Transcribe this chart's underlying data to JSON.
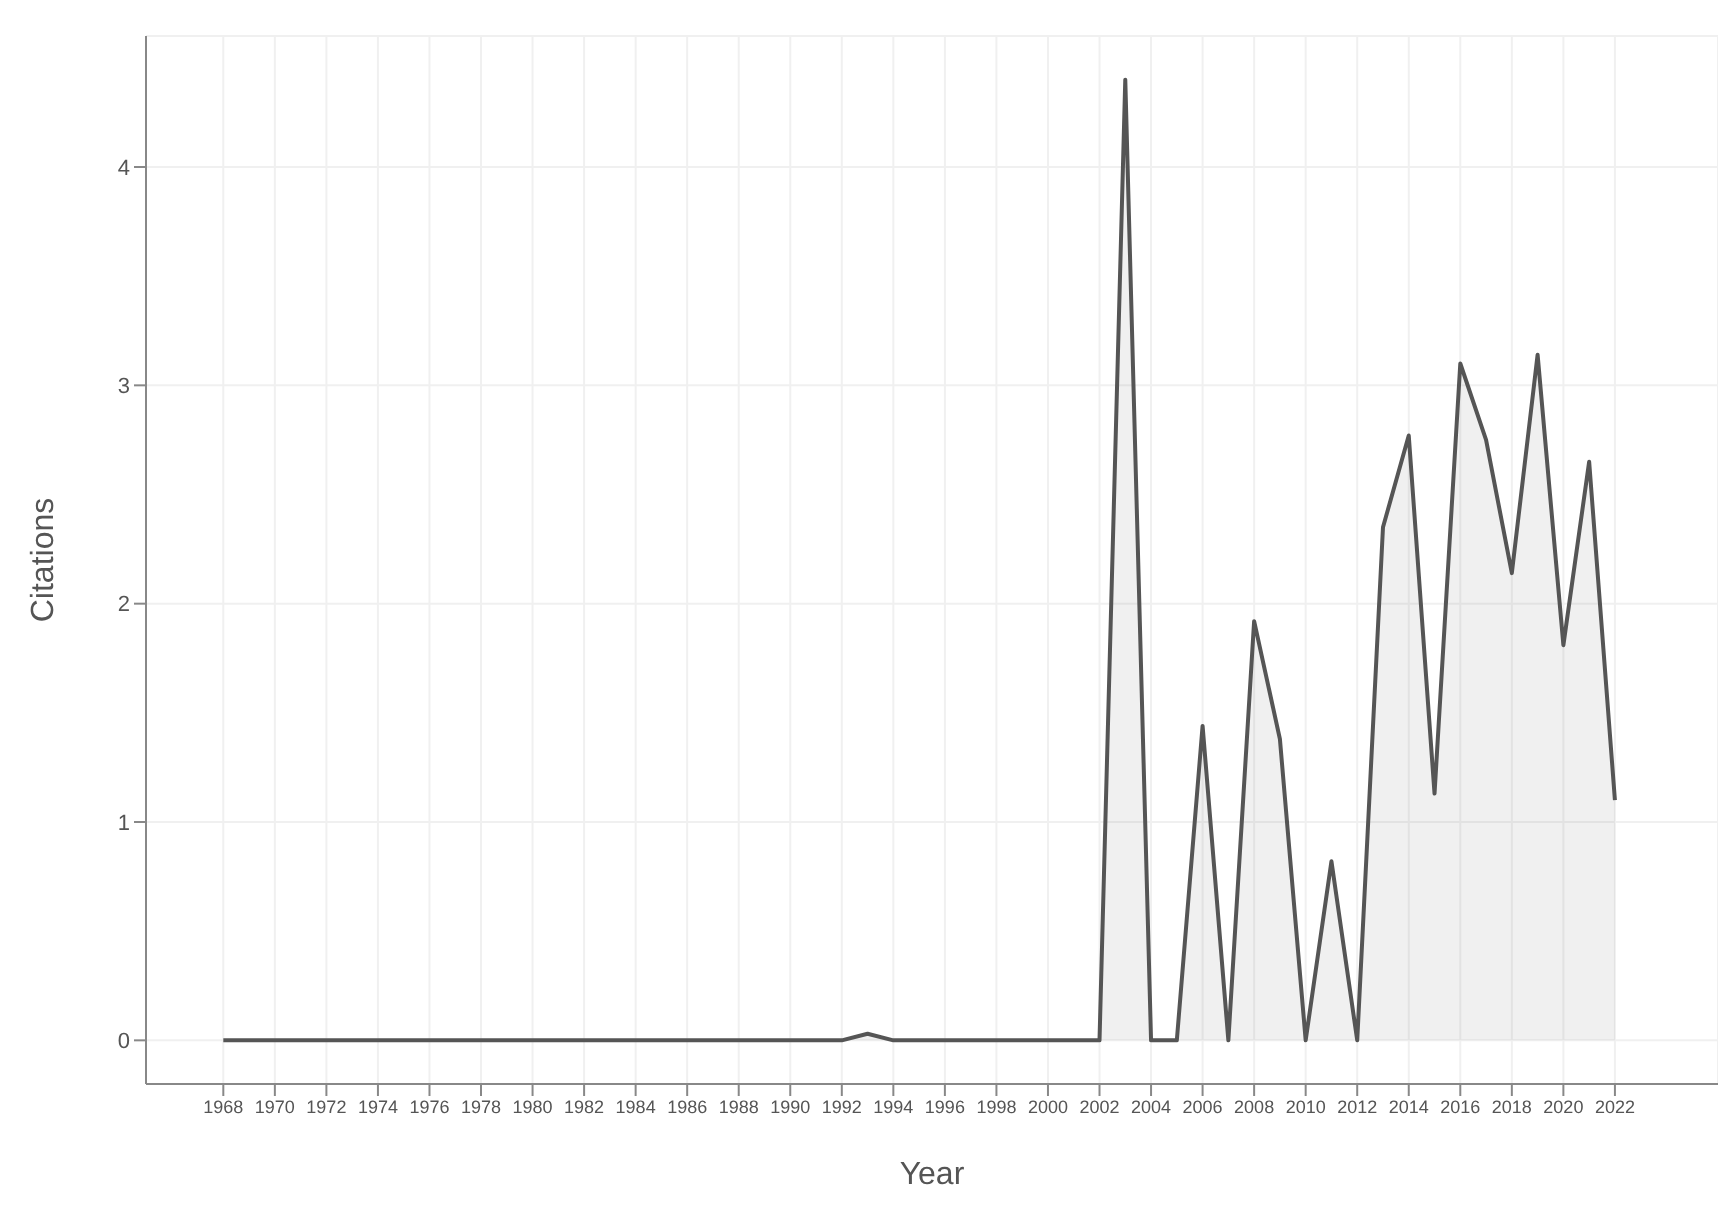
{
  "chart_data": {
    "type": "area",
    "xlabel": "Year",
    "ylabel": "Citations",
    "x": [
      1968,
      1969,
      1970,
      1971,
      1972,
      1973,
      1974,
      1975,
      1976,
      1977,
      1978,
      1979,
      1980,
      1981,
      1982,
      1983,
      1984,
      1985,
      1986,
      1987,
      1988,
      1989,
      1990,
      1991,
      1992,
      1993,
      1994,
      1995,
      1996,
      1997,
      1998,
      1999,
      2000,
      2001,
      2002,
      2003,
      2004,
      2005,
      2006,
      2007,
      2008,
      2009,
      2010,
      2011,
      2012,
      2013,
      2014,
      2015,
      2016,
      2017,
      2018,
      2019,
      2020,
      2021,
      2022
    ],
    "series": [
      {
        "color": "#555555",
        "values": [
          0,
          0,
          0,
          0,
          0,
          0,
          0,
          0,
          0,
          0,
          0,
          0,
          0,
          0,
          0,
          0,
          0,
          0,
          0,
          0,
          0,
          0,
          0,
          0,
          0,
          0.03,
          0,
          0,
          0,
          0,
          0,
          0,
          0,
          0,
          0,
          4.4,
          0,
          0,
          1.44,
          0,
          1.92,
          1.38,
          0,
          0.82,
          0,
          2.35,
          2.77,
          1.13,
          3.1,
          2.75,
          2.14,
          3.14,
          1.81,
          2.65,
          1.1
        ]
      }
    ],
    "xlim": [
      1965,
      2026
    ],
    "xticks": [
      1968,
      1970,
      1972,
      1974,
      1976,
      1978,
      1980,
      1982,
      1984,
      1986,
      1988,
      1990,
      1992,
      1994,
      1996,
      1998,
      2000,
      2002,
      2004,
      2006,
      2008,
      2010,
      2012,
      2014,
      2016,
      2018,
      2020,
      2022
    ],
    "ylim": [
      -0.2,
      4.6
    ],
    "yticks": [
      0,
      1,
      2,
      3,
      4
    ],
    "grid": true,
    "marker": "none",
    "line_style": "solid"
  }
}
